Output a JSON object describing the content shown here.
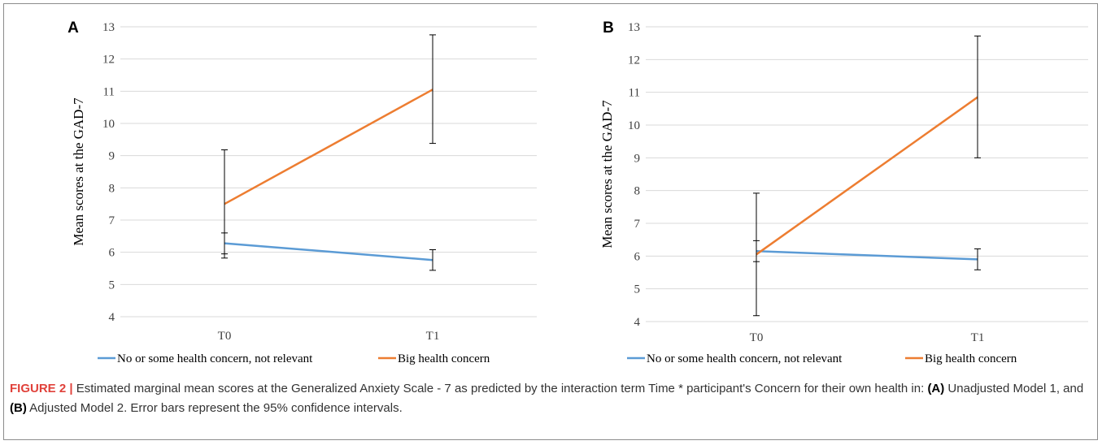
{
  "chart_data": [
    {
      "type": "line",
      "panel_label": "A",
      "categories": [
        "T0",
        "T1"
      ],
      "ylabel": "Mean scores at the GAD-7",
      "ylim": [
        4,
        13
      ],
      "yticks": [
        4,
        5,
        6,
        7,
        8,
        9,
        10,
        11,
        12,
        13
      ],
      "grid": true,
      "legend_position": "bottom",
      "series": [
        {
          "name": "No or some health concern, not relevant",
          "color": "#5b9bd5",
          "values": [
            6.28,
            5.76
          ],
          "ci_low": [
            5.95,
            5.44
          ],
          "ci_high": [
            6.6,
            6.08
          ]
        },
        {
          "name": "Big health concern",
          "color": "#ed7d31",
          "values": [
            7.5,
            11.05
          ],
          "ci_low": [
            5.82,
            9.38
          ],
          "ci_high": [
            9.18,
            12.75
          ]
        }
      ]
    },
    {
      "type": "line",
      "panel_label": "B",
      "categories": [
        "T0",
        "T1"
      ],
      "ylabel": "Mean scores at the GAD-7",
      "ylim": [
        4,
        13
      ],
      "yticks": [
        4,
        5,
        6,
        7,
        8,
        9,
        10,
        11,
        12,
        13
      ],
      "grid": true,
      "legend_position": "bottom",
      "series": [
        {
          "name": "No or some health concern, not relevant",
          "color": "#5b9bd5",
          "values": [
            6.15,
            5.9
          ],
          "ci_low": [
            5.83,
            5.58
          ],
          "ci_high": [
            6.47,
            6.22
          ]
        },
        {
          "name": "Big health concern",
          "color": "#ed7d31",
          "values": [
            6.05,
            10.85
          ],
          "ci_low": [
            4.18,
            9.0
          ],
          "ci_high": [
            7.92,
            12.72
          ]
        }
      ]
    }
  ],
  "caption": {
    "figure_label": "FIGURE 2 |",
    "text_1": " Estimated marginal mean scores at the Generalized Anxiety Scale - 7 as predicted by the interaction term Time * participant's Concern for their own health in: ",
    "bold_a": "(A)",
    "text_2": " Unadjusted Model 1, and ",
    "bold_b": "(B)",
    "text_3": " Adjusted Model 2. Error bars represent the 95% confidence intervals."
  }
}
